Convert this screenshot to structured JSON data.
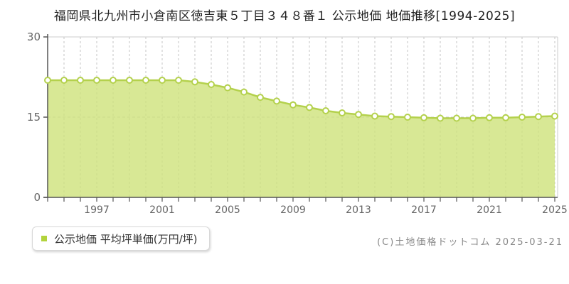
{
  "page": {
    "title": "福岡県北九州市小倉南区徳吉東５丁目３４８番１ 公示地価 地価推移[1994-2025]",
    "copyright": "(C)土地価格ドットコム 2025-03-21"
  },
  "legend": {
    "label": "公示地価 平均坪単価(万円/坪)"
  },
  "chart_data": {
    "type": "area",
    "title": "福岡県北九州市小倉南区徳吉東５丁目３４８番１ 公示地価 地価推移[1994-2025]",
    "series_name": "公示地価 平均坪単価(万円/坪)",
    "ylabel": "万円/坪",
    "ylim": [
      0,
      30
    ],
    "yticks": [
      0,
      15,
      30
    ],
    "x": [
      1994,
      1995,
      1996,
      1997,
      1998,
      1999,
      2000,
      2001,
      2002,
      2003,
      2004,
      2005,
      2006,
      2007,
      2008,
      2009,
      2010,
      2011,
      2012,
      2013,
      2014,
      2015,
      2016,
      2017,
      2018,
      2019,
      2020,
      2021,
      2022,
      2023,
      2024,
      2025
    ],
    "values": [
      21.9,
      21.9,
      21.9,
      21.9,
      21.9,
      21.9,
      21.9,
      21.9,
      21.9,
      21.6,
      21.1,
      20.5,
      19.7,
      18.7,
      18.0,
      17.3,
      16.8,
      16.2,
      15.8,
      15.5,
      15.2,
      15.1,
      15.0,
      14.9,
      14.8,
      14.8,
      14.8,
      14.9,
      14.9,
      15.0,
      15.1,
      15.2
    ],
    "xtick_labels": [
      1997,
      2001,
      2005,
      2009,
      2013,
      2017,
      2021,
      2025
    ],
    "grid": "vertical dashed per year, horizontal dashed at 15, solid light top/right border",
    "legend_position": "bottom-left",
    "colors": {
      "line": "#b4d14d",
      "fill": "rgba(206,226,122,0.8)",
      "marker_fill": "#ffffff",
      "grid": "#c6c6c6",
      "border": "#cccccc",
      "axis": "#555555",
      "tick_text": "#666666",
      "title_text": "#222222",
      "legend_swatch": "#b2d33c",
      "copyright_text": "#888888"
    }
  }
}
